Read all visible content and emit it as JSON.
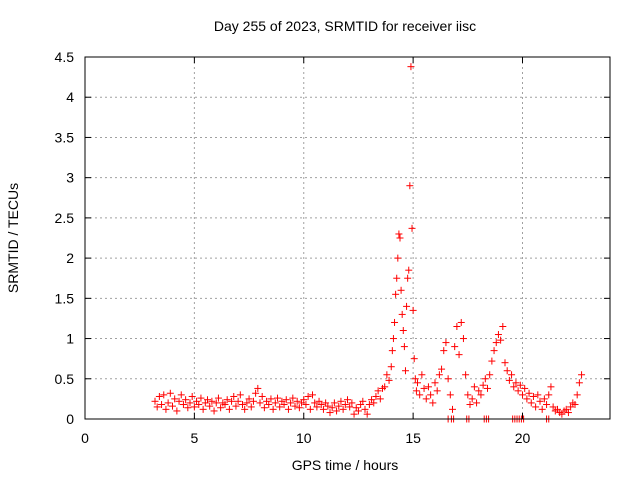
{
  "chart_data": {
    "type": "scatter",
    "title": "Day 255 of 2023, SRMTID for receiver iisc",
    "xlabel": "GPS time / hours",
    "ylabel": "SRMTID / TECUs",
    "xlim": [
      0,
      24
    ],
    "ylim": [
      0,
      4.5
    ],
    "xticks": [
      0,
      5,
      10,
      15,
      20
    ],
    "xtick_labels": [
      "0",
      "5",
      "10",
      "15",
      "20"
    ],
    "yticks": [
      0,
      0.5,
      1,
      1.5,
      2,
      2.5,
      3,
      3.5,
      4,
      4.5
    ],
    "ytick_labels": [
      "0",
      "0.5",
      "1",
      "1.5",
      "2",
      "2.5",
      "3",
      "3.5",
      "4",
      "4.5"
    ],
    "grid": true,
    "marker": "+",
    "marker_color": "#ff0000",
    "series": [
      {
        "name": "SRMTID",
        "points": [
          [
            3.2,
            0.22
          ],
          [
            3.3,
            0.15
          ],
          [
            3.4,
            0.28
          ],
          [
            3.5,
            0.18
          ],
          [
            3.6,
            0.3
          ],
          [
            3.7,
            0.12
          ],
          [
            3.8,
            0.2
          ],
          [
            3.9,
            0.32
          ],
          [
            4.0,
            0.16
          ],
          [
            4.1,
            0.25
          ],
          [
            4.2,
            0.1
          ],
          [
            4.3,
            0.22
          ],
          [
            4.4,
            0.3
          ],
          [
            4.5,
            0.18
          ],
          [
            4.6,
            0.24
          ],
          [
            4.7,
            0.14
          ],
          [
            4.8,
            0.2
          ],
          [
            4.9,
            0.28
          ],
          [
            5.0,
            0.15
          ],
          [
            5.1,
            0.22
          ],
          [
            5.2,
            0.18
          ],
          [
            5.3,
            0.26
          ],
          [
            5.4,
            0.12
          ],
          [
            5.5,
            0.2
          ],
          [
            5.6,
            0.24
          ],
          [
            5.7,
            0.16
          ],
          [
            5.8,
            0.22
          ],
          [
            5.9,
            0.1
          ],
          [
            6.0,
            0.2
          ],
          [
            6.1,
            0.26
          ],
          [
            6.2,
            0.14
          ],
          [
            6.3,
            0.2
          ],
          [
            6.4,
            0.18
          ],
          [
            6.5,
            0.24
          ],
          [
            6.6,
            0.12
          ],
          [
            6.7,
            0.22
          ],
          [
            6.8,
            0.28
          ],
          [
            6.9,
            0.16
          ],
          [
            7.0,
            0.22
          ],
          [
            7.1,
            0.3
          ],
          [
            7.2,
            0.18
          ],
          [
            7.3,
            0.12
          ],
          [
            7.4,
            0.2
          ],
          [
            7.5,
            0.25
          ],
          [
            7.6,
            0.15
          ],
          [
            7.7,
            0.22
          ],
          [
            7.8,
            0.32
          ],
          [
            7.9,
            0.38
          ],
          [
            8.0,
            0.2
          ],
          [
            8.1,
            0.28
          ],
          [
            8.2,
            0.14
          ],
          [
            8.3,
            0.22
          ],
          [
            8.4,
            0.18
          ],
          [
            8.5,
            0.25
          ],
          [
            8.6,
            0.12
          ],
          [
            8.7,
            0.2
          ],
          [
            8.8,
            0.26
          ],
          [
            8.9,
            0.15
          ],
          [
            9.0,
            0.22
          ],
          [
            9.1,
            0.18
          ],
          [
            9.2,
            0.24
          ],
          [
            9.3,
            0.12
          ],
          [
            9.4,
            0.2
          ],
          [
            9.5,
            0.26
          ],
          [
            9.6,
            0.16
          ],
          [
            9.7,
            0.22
          ],
          [
            9.8,
            0.14
          ],
          [
            9.9,
            0.2
          ],
          [
            10.0,
            0.24
          ],
          [
            10.1,
            0.18
          ],
          [
            10.2,
            0.28
          ],
          [
            10.3,
            0.12
          ],
          [
            10.4,
            0.3
          ],
          [
            10.5,
            0.2
          ],
          [
            10.6,
            0.15
          ],
          [
            10.7,
            0.22
          ],
          [
            10.8,
            0.18
          ],
          [
            10.9,
            0.12
          ],
          [
            11.0,
            0.2
          ],
          [
            11.1,
            0.16
          ],
          [
            11.2,
            0.08
          ],
          [
            11.3,
            0.14
          ],
          [
            11.4,
            0.2
          ],
          [
            11.5,
            0.1
          ],
          [
            11.6,
            0.16
          ],
          [
            11.7,
            0.22
          ],
          [
            11.8,
            0.12
          ],
          [
            11.9,
            0.18
          ],
          [
            12.0,
            0.24
          ],
          [
            12.1,
            0.15
          ],
          [
            12.2,
            0.2
          ],
          [
            12.3,
            0.06
          ],
          [
            12.4,
            0.14
          ],
          [
            12.5,
            0.1
          ],
          [
            12.6,
            0.18
          ],
          [
            12.7,
            0.22
          ],
          [
            12.8,
            0.12
          ],
          [
            12.9,
            0.06
          ],
          [
            13.0,
            0.18
          ],
          [
            13.1,
            0.24
          ],
          [
            13.2,
            0.2
          ],
          [
            13.3,
            0.28
          ],
          [
            13.4,
            0.35
          ],
          [
            13.5,
            0.25
          ],
          [
            13.6,
            0.38
          ],
          [
            13.7,
            0.4
          ],
          [
            13.8,
            0.55
          ],
          [
            13.9,
            0.48
          ],
          [
            14.0,
            0.65
          ],
          [
            14.05,
            0.85
          ],
          [
            14.1,
            1.0
          ],
          [
            14.15,
            1.2
          ],
          [
            14.2,
            1.55
          ],
          [
            14.25,
            1.75
          ],
          [
            14.3,
            2.0
          ],
          [
            14.35,
            2.3
          ],
          [
            14.4,
            2.25
          ],
          [
            14.45,
            1.6
          ],
          [
            14.5,
            1.3
          ],
          [
            14.55,
            1.1
          ],
          [
            14.6,
            0.9
          ],
          [
            14.65,
            0.6
          ],
          [
            14.7,
            1.4
          ],
          [
            14.75,
            1.75
          ],
          [
            14.8,
            1.85
          ],
          [
            14.85,
            2.9
          ],
          [
            14.9,
            4.38
          ],
          [
            14.95,
            2.37
          ],
          [
            15.0,
            1.35
          ],
          [
            15.05,
            0.75
          ],
          [
            15.1,
            0.5
          ],
          [
            15.15,
            0.35
          ],
          [
            15.2,
            0.45
          ],
          [
            15.3,
            0.3
          ],
          [
            15.4,
            0.55
          ],
          [
            15.5,
            0.38
          ],
          [
            15.6,
            0.25
          ],
          [
            15.7,
            0.4
          ],
          [
            15.8,
            0.3
          ],
          [
            15.9,
            0.2
          ],
          [
            16.0,
            0.45
          ],
          [
            16.1,
            0.35
          ],
          [
            16.2,
            0.55
          ],
          [
            16.3,
            0.62
          ],
          [
            16.4,
            0.85
          ],
          [
            16.5,
            0.95
          ],
          [
            16.6,
            0.5
          ],
          [
            16.7,
            0.3
          ],
          [
            16.8,
            0.12
          ],
          [
            16.9,
            0.9
          ],
          [
            17.0,
            1.15
          ],
          [
            17.1,
            0.8
          ],
          [
            17.2,
            1.2
          ],
          [
            17.3,
            1.0
          ],
          [
            17.4,
            0.55
          ],
          [
            17.5,
            0.3
          ],
          [
            17.6,
            0.18
          ],
          [
            17.7,
            0.25
          ],
          [
            17.8,
            0.4
          ],
          [
            17.9,
            0.2
          ],
          [
            18.0,
            0.35
          ],
          [
            18.1,
            0.3
          ],
          [
            18.2,
            0.42
          ],
          [
            18.3,
            0.5
          ],
          [
            18.4,
            0.38
          ],
          [
            18.5,
            0.55
          ],
          [
            18.6,
            0.72
          ],
          [
            18.7,
            0.85
          ],
          [
            18.8,
            0.95
          ],
          [
            18.9,
            1.05
          ],
          [
            19.0,
            0.98
          ],
          [
            19.1,
            1.15
          ],
          [
            19.2,
            0.7
          ],
          [
            19.3,
            0.6
          ],
          [
            19.4,
            0.48
          ],
          [
            19.5,
            0.55
          ],
          [
            19.6,
            0.4
          ],
          [
            19.7,
            0.45
          ],
          [
            19.8,
            0.35
          ],
          [
            19.9,
            0.42
          ],
          [
            20.0,
            0.3
          ],
          [
            20.1,
            0.38
          ],
          [
            20.2,
            0.25
          ],
          [
            20.3,
            0.32
          ],
          [
            20.4,
            0.2
          ],
          [
            20.5,
            0.28
          ],
          [
            20.6,
            0.15
          ],
          [
            20.7,
            0.3
          ],
          [
            20.8,
            0.22
          ],
          [
            20.9,
            0.12
          ],
          [
            21.0,
            0.25
          ],
          [
            21.1,
            0.18
          ],
          [
            21.2,
            0.3
          ],
          [
            21.3,
            0.4
          ],
          [
            21.4,
            0.15
          ],
          [
            21.5,
            0.1
          ],
          [
            21.6,
            0.12
          ],
          [
            21.7,
            0.08
          ],
          [
            21.8,
            0.06
          ],
          [
            21.9,
            0.1
          ],
          [
            22.0,
            0.12
          ],
          [
            22.1,
            0.08
          ],
          [
            22.2,
            0.15
          ],
          [
            22.3,
            0.2
          ],
          [
            22.4,
            0.18
          ],
          [
            22.5,
            0.3
          ],
          [
            22.6,
            0.45
          ],
          [
            22.7,
            0.55
          ]
        ],
        "zero_points_x": [
          16.6,
          16.75,
          16.85,
          17.45,
          17.55,
          18.25,
          18.35,
          18.45,
          19.55,
          19.65,
          19.75,
          19.85,
          19.95,
          20.05,
          21.1,
          21.2
        ]
      }
    ]
  }
}
